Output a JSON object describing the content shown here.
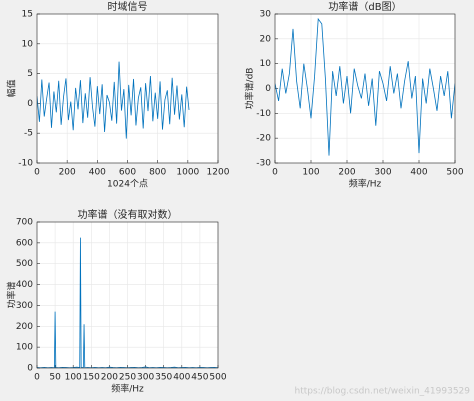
{
  "chart_data": [
    {
      "type": "line",
      "title": "时域信号",
      "xlabel": "1024个点",
      "ylabel": "幅值",
      "color": "#0072bd",
      "grid": true,
      "xlim": [
        0,
        1200
      ],
      "xticks": [
        0,
        200,
        400,
        600,
        800,
        1000,
        1200
      ],
      "ylim": [
        -10,
        15
      ],
      "yticks": [
        -10,
        -5,
        0,
        5,
        10,
        15
      ],
      "x": [
        0,
        16,
        32,
        48,
        64,
        80,
        96,
        112,
        128,
        144,
        160,
        176,
        192,
        208,
        224,
        240,
        256,
        272,
        288,
        304,
        320,
        336,
        352,
        368,
        384,
        400,
        416,
        432,
        448,
        464,
        480,
        496,
        512,
        528,
        544,
        560,
        576,
        592,
        608,
        624,
        640,
        656,
        672,
        688,
        704,
        720,
        736,
        752,
        768,
        784,
        800,
        816,
        832,
        848,
        864,
        880,
        896,
        912,
        928,
        944,
        960,
        976,
        992,
        1008
      ],
      "values": [
        1.2,
        -3.1,
        4.0,
        -2.2,
        0.8,
        3.5,
        -4.1,
        2.0,
        -1.5,
        3.8,
        -3.6,
        1.1,
        4.2,
        -2.8,
        0.3,
        -4.5,
        2.6,
        -1.0,
        3.9,
        -3.3,
        1.7,
        -2.4,
        4.4,
        -0.6,
        -3.9,
        2.9,
        -1.8,
        3.2,
        -4.8,
        1.4,
        0.2,
        -2.9,
        3.6,
        -3.4,
        7.0,
        -1.2,
        2.4,
        -5.9,
        3.1,
        -2.0,
        4.1,
        -3.7,
        0.9,
        2.7,
        -4.2,
        3.4,
        -1.3,
        4.6,
        -3.0,
        1.8,
        -2.6,
        3.7,
        -4.4,
        0.6,
        2.2,
        -3.5,
        4.3,
        -1.9,
        3.0,
        -2.7,
        1.5,
        -4.0,
        2.8,
        -1.1
      ]
    },
    {
      "type": "line",
      "title": "功率谱（dB图）",
      "xlabel": "频率/Hz",
      "ylabel": "功率谱/dB",
      "color": "#0072bd",
      "grid": true,
      "xlim": [
        0,
        500
      ],
      "xticks": [
        0,
        100,
        200,
        300,
        400,
        500
      ],
      "ylim": [
        -30,
        30
      ],
      "yticks": [
        -30,
        -20,
        -10,
        0,
        10,
        20,
        30
      ],
      "x": [
        0,
        10,
        20,
        30,
        40,
        50,
        60,
        70,
        80,
        90,
        100,
        110,
        120,
        130,
        140,
        150,
        160,
        170,
        180,
        190,
        200,
        210,
        220,
        230,
        240,
        250,
        260,
        270,
        280,
        290,
        300,
        310,
        320,
        330,
        340,
        350,
        360,
        370,
        380,
        390,
        400,
        410,
        420,
        430,
        440,
        450,
        460,
        470,
        480,
        490,
        500
      ],
      "values": [
        2,
        -5,
        8,
        -2,
        6,
        24,
        3,
        -8,
        10,
        0,
        -12,
        5,
        28,
        26,
        4,
        -27,
        7,
        -3,
        9,
        -6,
        5,
        -10,
        8,
        1,
        -4,
        6,
        -7,
        4,
        -15,
        7,
        2,
        -5,
        9,
        -2,
        6,
        -8,
        3,
        11,
        -4,
        5,
        -26,
        4,
        -6,
        8,
        0,
        -9,
        5,
        -3,
        7,
        -12,
        2
      ]
    },
    {
      "type": "line",
      "title": "功率谱（没有取对数）",
      "xlabel": "频率/Hz",
      "ylabel": "功率谱",
      "color": "#0072bd",
      "grid": true,
      "xlim": [
        0,
        500
      ],
      "xticks": [
        0,
        50,
        100,
        150,
        200,
        250,
        300,
        350,
        400,
        450,
        500
      ],
      "ylim": [
        0,
        700
      ],
      "yticks": [
        0,
        100,
        200,
        300,
        400,
        500,
        600,
        700
      ],
      "x": [
        0,
        10,
        20,
        30,
        40,
        48,
        50,
        52,
        60,
        70,
        80,
        90,
        100,
        110,
        118,
        120,
        122,
        128,
        130,
        132,
        140,
        150,
        160,
        170,
        180,
        190,
        200,
        210,
        220,
        230,
        240,
        250,
        260,
        270,
        280,
        290,
        300,
        310,
        320,
        330,
        340,
        350,
        360,
        370,
        380,
        390,
        400,
        410,
        420,
        430,
        440,
        450,
        460,
        470,
        480,
        490,
        500
      ],
      "values": [
        2,
        1,
        3,
        1,
        2,
        1,
        270,
        2,
        1,
        3,
        2,
        1,
        2,
        4,
        2,
        625,
        3,
        2,
        210,
        1,
        2,
        1,
        3,
        1,
        2,
        1,
        4,
        2,
        1,
        3,
        2,
        1,
        2,
        3,
        1,
        2,
        5,
        1,
        2,
        1,
        3,
        2,
        1,
        2,
        4,
        1,
        2,
        3,
        1,
        2,
        1,
        3,
        2,
        1,
        2,
        3,
        1
      ]
    }
  ],
  "watermark": "https://blog.csdn.net/weixin_41993529"
}
